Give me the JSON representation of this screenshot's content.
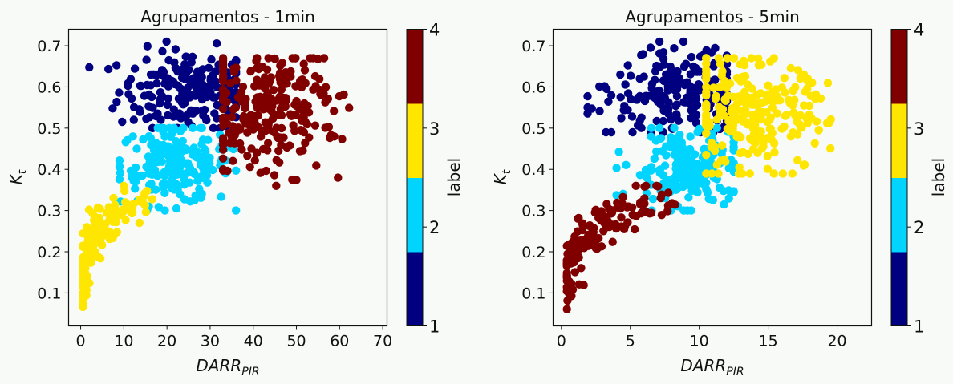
{
  "figure": {
    "background": "#f8faf8"
  },
  "chart_data": [
    {
      "type": "scatter",
      "title": "Agrupamentos - 1min",
      "xlabel": "DARR_PIR",
      "ylabel": "K_t",
      "xlim": [
        -2.8,
        71
      ],
      "ylim": [
        0.02,
        0.74
      ],
      "xticks": [
        0,
        10,
        20,
        30,
        40,
        50,
        60,
        70
      ],
      "yticks": [
        0.1,
        0.2,
        0.3,
        0.4,
        0.5,
        0.6,
        0.7
      ],
      "grid": false,
      "colorbar": {
        "label": "label",
        "ticks": [
          1,
          2,
          3,
          4
        ],
        "colors": [
          "#000080",
          "#00d4ff",
          "#ffe600",
          "#800000"
        ]
      },
      "series": [
        {
          "name": "1",
          "color": "#000080",
          "center": [
            25,
            0.59
          ],
          "x_range": [
            2,
            36
          ],
          "y_range": [
            0.5,
            0.71
          ],
          "count": 200
        },
        {
          "name": "2",
          "color": "#00d4ff",
          "center": [
            22,
            0.41
          ],
          "x_range": [
            9,
            36
          ],
          "y_range": [
            0.3,
            0.5
          ],
          "count": 200
        },
        {
          "name": "3",
          "color": "#ffe600",
          "center": [
            7,
            0.21
          ],
          "x_range": [
            0.5,
            17
          ],
          "y_range": [
            0.055,
            0.36
          ],
          "count": 150
        },
        {
          "name": "4",
          "color": "#800000",
          "center": [
            43,
            0.54
          ],
          "x_range": [
            33,
            67.5
          ],
          "y_range": [
            0.36,
            0.67
          ],
          "count": 250
        }
      ]
    },
    {
      "type": "scatter",
      "title": "Agrupamentos - 5min",
      "xlabel": "DARR_PIR",
      "ylabel": "K_t",
      "xlim": [
        -0.6,
        22.5
      ],
      "ylim": [
        0.02,
        0.74
      ],
      "xticks": [
        0,
        5,
        10,
        15,
        20
      ],
      "yticks": [
        0.1,
        0.2,
        0.3,
        0.4,
        0.5,
        0.6,
        0.7
      ],
      "grid": false,
      "colorbar": {
        "label": "label",
        "ticks": [
          1,
          2,
          3,
          4
        ],
        "colors": [
          "#000080",
          "#00d4ff",
          "#ffe600",
          "#800000"
        ]
      },
      "series": [
        {
          "name": "1",
          "color": "#000080",
          "center": [
            8.5,
            0.59
          ],
          "x_range": [
            1.9,
            12
          ],
          "y_range": [
            0.49,
            0.71
          ],
          "count": 200
        },
        {
          "name": "2",
          "color": "#00d4ff",
          "center": [
            9,
            0.4
          ],
          "x_range": [
            4,
            12.5
          ],
          "y_range": [
            0.3,
            0.5
          ],
          "count": 200
        },
        {
          "name": "3",
          "color": "#ffe600",
          "center": [
            14,
            0.53
          ],
          "x_range": [
            10.5,
            21.5
          ],
          "y_range": [
            0.39,
            0.67
          ],
          "count": 250
        },
        {
          "name": "4",
          "color": "#800000",
          "center": [
            3.5,
            0.22
          ],
          "x_range": [
            0.4,
            8.5
          ],
          "y_range": [
            0.055,
            0.36
          ],
          "count": 150
        }
      ]
    }
  ],
  "charts": [
    {
      "title": "Agrupamentos - 1min",
      "xlabel_main": "DARR",
      "xlabel_sub": "PIR",
      "ylabel_main": "K",
      "ylabel_sub": "t",
      "xticks": [
        "0",
        "10",
        "20",
        "30",
        "40",
        "50",
        "60",
        "70"
      ],
      "yticks": [
        "0.1",
        "0.2",
        "0.3",
        "0.4",
        "0.5",
        "0.6",
        "0.7"
      ],
      "cbar_label": "label",
      "cbar_ticks": [
        "1",
        "2",
        "3",
        "4"
      ]
    },
    {
      "title": "Agrupamentos - 5min",
      "xlabel_main": "DARR",
      "xlabel_sub": "PIR",
      "ylabel_main": "K",
      "ylabel_sub": "t",
      "xticks": [
        "0",
        "5",
        "10",
        "15",
        "20"
      ],
      "yticks": [
        "0.1",
        "0.2",
        "0.3",
        "0.4",
        "0.5",
        "0.6",
        "0.7"
      ],
      "cbar_label": "label",
      "cbar_ticks": [
        "1",
        "2",
        "3",
        "4"
      ]
    }
  ]
}
